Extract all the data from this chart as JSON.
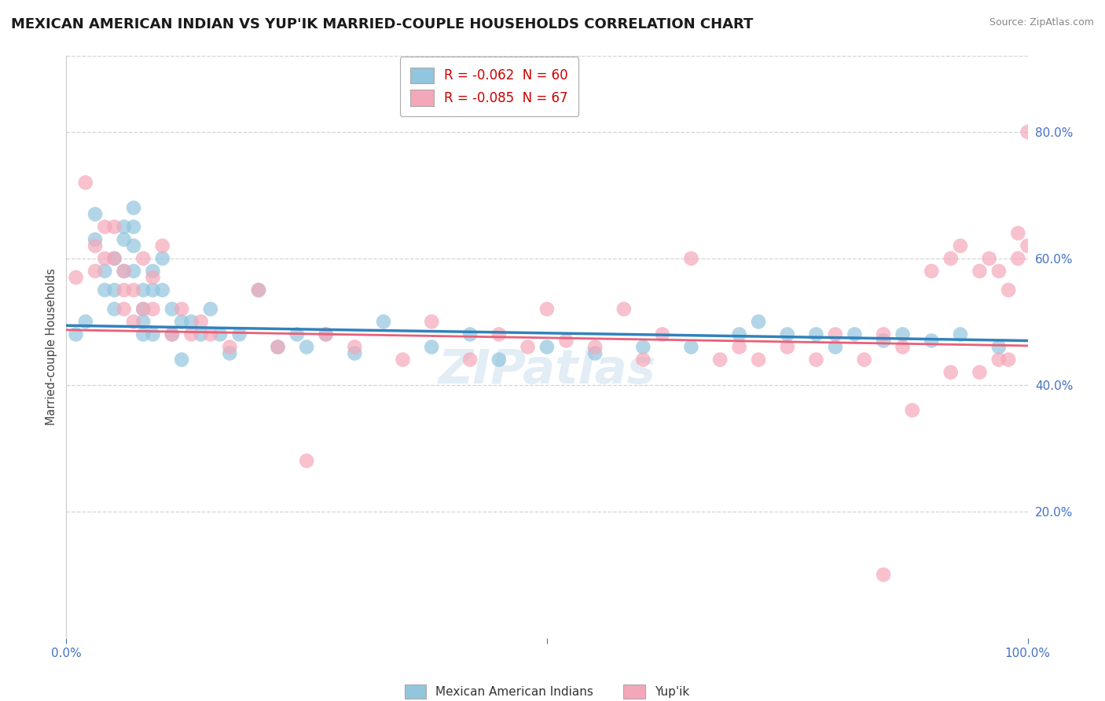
{
  "title": "MEXICAN AMERICAN INDIAN VS YUP'IK MARRIED-COUPLE HOUSEHOLDS CORRELATION CHART",
  "source": "Source: ZipAtlas.com",
  "ylabel": "Married-couple Households",
  "legend1_label": "R = -0.062  N = 60",
  "legend2_label": "R = -0.085  N = 67",
  "legend_bottom_label1": "Mexican American Indians",
  "legend_bottom_label2": "Yup'ik",
  "blue_color": "#92c5de",
  "pink_color": "#f4a7b9",
  "blue_line_color": "#3182bd",
  "pink_line_color": "#e8607a",
  "watermark": "ZIPatlas",
  "blue_scatter_x": [
    0.01,
    0.02,
    0.03,
    0.03,
    0.04,
    0.04,
    0.05,
    0.05,
    0.05,
    0.06,
    0.06,
    0.06,
    0.07,
    0.07,
    0.07,
    0.07,
    0.08,
    0.08,
    0.08,
    0.08,
    0.09,
    0.09,
    0.09,
    0.1,
    0.1,
    0.11,
    0.11,
    0.12,
    0.12,
    0.13,
    0.14,
    0.15,
    0.16,
    0.17,
    0.18,
    0.2,
    0.22,
    0.24,
    0.25,
    0.27,
    0.3,
    0.33,
    0.38,
    0.42,
    0.45,
    0.5,
    0.55,
    0.6,
    0.65,
    0.7,
    0.72,
    0.75,
    0.78,
    0.8,
    0.82,
    0.85,
    0.87,
    0.9,
    0.93,
    0.97
  ],
  "blue_scatter_y": [
    0.48,
    0.5,
    0.63,
    0.67,
    0.55,
    0.58,
    0.6,
    0.55,
    0.52,
    0.65,
    0.63,
    0.58,
    0.68,
    0.65,
    0.62,
    0.58,
    0.55,
    0.52,
    0.5,
    0.48,
    0.58,
    0.55,
    0.48,
    0.6,
    0.55,
    0.48,
    0.52,
    0.5,
    0.44,
    0.5,
    0.48,
    0.52,
    0.48,
    0.45,
    0.48,
    0.55,
    0.46,
    0.48,
    0.46,
    0.48,
    0.45,
    0.5,
    0.46,
    0.48,
    0.44,
    0.46,
    0.45,
    0.46,
    0.46,
    0.48,
    0.5,
    0.48,
    0.48,
    0.46,
    0.48,
    0.47,
    0.48,
    0.47,
    0.48,
    0.46
  ],
  "pink_scatter_x": [
    0.01,
    0.02,
    0.03,
    0.03,
    0.04,
    0.04,
    0.05,
    0.05,
    0.06,
    0.06,
    0.06,
    0.07,
    0.07,
    0.08,
    0.08,
    0.09,
    0.09,
    0.1,
    0.11,
    0.12,
    0.13,
    0.14,
    0.15,
    0.17,
    0.2,
    0.22,
    0.25,
    0.27,
    0.3,
    0.35,
    0.38,
    0.42,
    0.45,
    0.48,
    0.5,
    0.52,
    0.55,
    0.58,
    0.6,
    0.62,
    0.65,
    0.68,
    0.7,
    0.72,
    0.75,
    0.78,
    0.8,
    0.83,
    0.85,
    0.87,
    0.9,
    0.92,
    0.93,
    0.95,
    0.96,
    0.97,
    0.98,
    0.99,
    1.0,
    1.0,
    0.99,
    0.98,
    0.97,
    0.95,
    0.92,
    0.88,
    0.85
  ],
  "pink_scatter_y": [
    0.57,
    0.72,
    0.62,
    0.58,
    0.65,
    0.6,
    0.65,
    0.6,
    0.58,
    0.55,
    0.52,
    0.55,
    0.5,
    0.6,
    0.52,
    0.57,
    0.52,
    0.62,
    0.48,
    0.52,
    0.48,
    0.5,
    0.48,
    0.46,
    0.55,
    0.46,
    0.28,
    0.48,
    0.46,
    0.44,
    0.5,
    0.44,
    0.48,
    0.46,
    0.52,
    0.47,
    0.46,
    0.52,
    0.44,
    0.48,
    0.6,
    0.44,
    0.46,
    0.44,
    0.46,
    0.44,
    0.48,
    0.44,
    0.48,
    0.46,
    0.58,
    0.6,
    0.62,
    0.58,
    0.6,
    0.58,
    0.55,
    0.6,
    0.62,
    0.8,
    0.64,
    0.44,
    0.44,
    0.42,
    0.42,
    0.36,
    0.1
  ],
  "blue_trend_y_start": 0.494,
  "blue_trend_y_end": 0.47,
  "pink_trend_y_start": 0.487,
  "pink_trend_y_end": 0.462,
  "xlim": [
    0.0,
    1.0
  ],
  "ylim": [
    0.0,
    0.92
  ],
  "yticks": [
    0.2,
    0.4,
    0.6,
    0.8
  ],
  "ytick_labels": [
    "20.0%",
    "40.0%",
    "60.0%",
    "80.0%"
  ],
  "xtick_labels_pos": [
    0.0,
    1.0
  ],
  "xtick_labels": [
    "0.0%",
    "100.0%"
  ],
  "bg_color": "#ffffff",
  "grid_color": "#d0d0d0",
  "title_fontsize": 13,
  "axis_tick_color": "#4472c4",
  "source_color": "#888888"
}
